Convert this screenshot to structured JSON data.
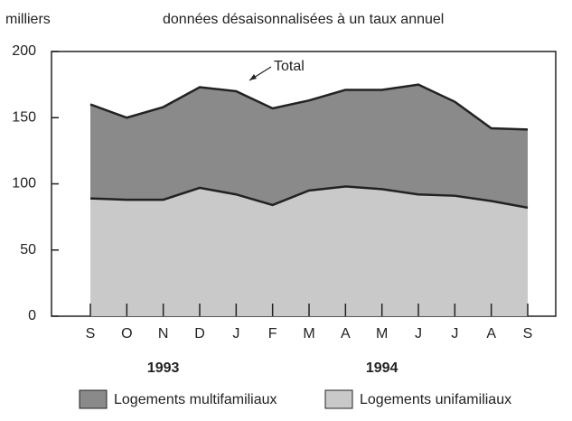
{
  "chart_data": {
    "type": "stacked_area",
    "y_label": "milliers",
    "subtitle": "données désaisonnalisées à un taux annuel",
    "annotation": "Total",
    "categories": [
      "S",
      "O",
      "N",
      "D",
      "J",
      "F",
      "M",
      "A",
      "M",
      "J",
      "J",
      "A",
      "S"
    ],
    "year_labels": [
      "1993",
      "1994"
    ],
    "series": [
      {
        "name": "Logements multifamiliaux",
        "color": "#8a8a8a",
        "values": [
          71,
          62,
          70,
          76,
          78,
          73,
          68,
          73,
          75,
          83,
          71,
          55,
          59
        ]
      },
      {
        "name": "Logements unifamiliaux",
        "color": "#c9c9c9",
        "values": [
          89,
          88,
          88,
          97,
          92,
          84,
          95,
          98,
          96,
          92,
          91,
          87,
          82
        ]
      }
    ],
    "ylim": [
      0,
      200
    ],
    "yticks": [
      0,
      50,
      100,
      150,
      200
    ]
  }
}
